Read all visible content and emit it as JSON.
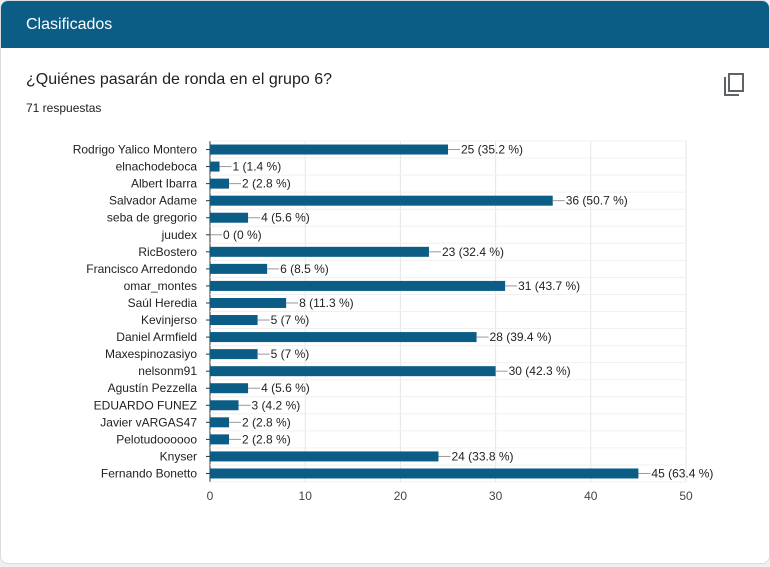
{
  "header": {
    "title": "Clasificados"
  },
  "question": {
    "title": "¿Quiénes pasarán de ronda en el grupo 6?",
    "responses": "71 respuestas"
  },
  "icons": {
    "copy": "copy-icon"
  },
  "colors": {
    "header_bg": "#0b5d86",
    "bar": "#0b5d86"
  },
  "chart_data": {
    "type": "bar",
    "orientation": "horizontal",
    "categories": [
      "Rodrigo Yalico Montero",
      "elnachodeboca",
      "Albert Ibarra",
      "Salvador Adame",
      "seba de gregorio",
      "juudex",
      "RicBostero",
      "Francisco Arredondo",
      "omar_montes",
      "Saúl Heredia",
      "Kevinjerso",
      "Daniel Armfield",
      "Maxespinozasiyo",
      "nelsonm91",
      "Agustín Pezzella",
      "EDUARDO FUNEZ",
      "Javier vARGAS47",
      "Pelotudoooooo",
      "Knyser",
      "Fernando Bonetto"
    ],
    "values": [
      25,
      1,
      2,
      36,
      4,
      0,
      23,
      6,
      31,
      8,
      5,
      28,
      5,
      30,
      4,
      3,
      2,
      2,
      24,
      45
    ],
    "data_labels": [
      "25 (35.2 %)",
      "1 (1.4 %)",
      "2 (2.8 %)",
      "36 (50.7 %)",
      "4 (5.6 %)",
      "0 (0 %)",
      "23 (32.4 %)",
      "6 (8.5 %)",
      "31 (43.7 %)",
      "8 (11.3 %)",
      "5 (7 %)",
      "28 (39.4 %)",
      "5 (7 %)",
      "30 (42.3 %)",
      "4 (5.6 %)",
      "3 (4.2 %)",
      "2 (2.8 %)",
      "2 (2.8 %)",
      "24 (33.8 %)",
      "45 (63.4 %)"
    ],
    "xlim": [
      0,
      50
    ],
    "xticks": [
      0,
      10,
      20,
      30,
      40,
      50
    ],
    "grid": true,
    "legend": "none",
    "title": "",
    "xlabel": "",
    "ylabel": ""
  }
}
